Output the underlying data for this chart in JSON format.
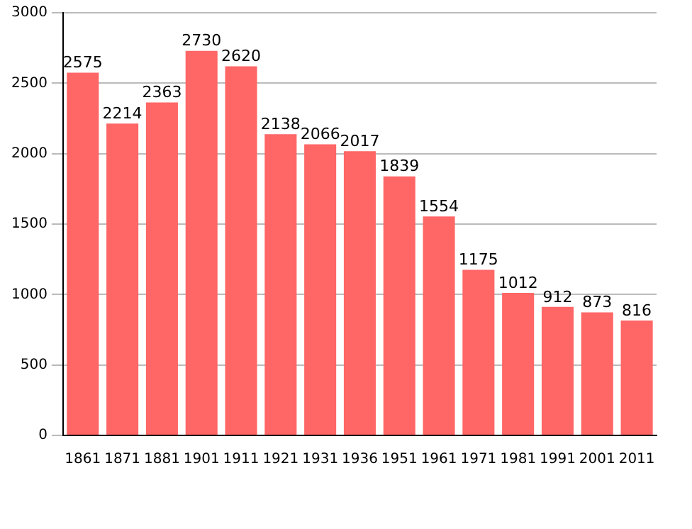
{
  "chart_data": {
    "type": "bar",
    "categories": [
      "1861",
      "1871",
      "1881",
      "1901",
      "1911",
      "1921",
      "1931",
      "1936",
      "1951",
      "1961",
      "1971",
      "1981",
      "1991",
      "2001",
      "2011"
    ],
    "values": [
      2575,
      2214,
      2363,
      2730,
      2620,
      2138,
      2066,
      2017,
      1839,
      1554,
      1175,
      1012,
      912,
      873,
      816
    ],
    "color": "#ff6666",
    "ylim": [
      0,
      3000
    ],
    "yticks": [
      0,
      500,
      1000,
      1500,
      2000,
      2500,
      3000
    ],
    "grid": "y",
    "data_labels": true,
    "legend": false
  }
}
